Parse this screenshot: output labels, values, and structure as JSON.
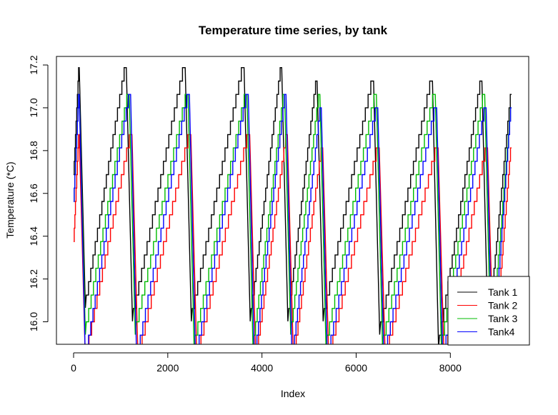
{
  "chart_data": {
    "type": "line",
    "title": "Temperature time series, by tank",
    "xlabel": "Index",
    "ylabel": "Temperature (*C)",
    "xlim": [
      0,
      9300
    ],
    "ylim": [
      15.9,
      17.2
    ],
    "x_ticks": [
      0,
      2000,
      4000,
      6000,
      8000
    ],
    "y_ticks": [
      16.0,
      16.2,
      16.4,
      16.6,
      16.8,
      17.0,
      17.2
    ],
    "x_tick_labels": [
      "0",
      "2000",
      "4000",
      "6000",
      "8000"
    ],
    "y_tick_labels": [
      "16.0",
      "16.2",
      "16.4",
      "16.6",
      "16.8",
      "17.0",
      "17.2"
    ],
    "grid": false,
    "legend_position": "bottom-right",
    "step_size": 0.0625,
    "cycle_breaks": [
      0,
      1000,
      2250,
      3500,
      4300,
      5050,
      6250,
      7500,
      8550,
      9300
    ],
    "series": [
      {
        "name": "Tank 1",
        "color": "#000000",
        "peaks": [
          17.1875,
          17.1875,
          17.1875,
          17.1875,
          17.1875,
          17.125,
          17.125,
          17.125,
          17.125,
          17.0625
        ],
        "troughs": [
          16.125,
          16.0625,
          16.0625,
          16.0625,
          16.0625,
          16.0625,
          16.0,
          15.9375,
          16.0
        ],
        "lags": [
          0,
          0,
          0,
          0,
          0,
          0,
          0,
          0,
          0,
          0
        ]
      },
      {
        "name": "Tank 2",
        "color": "#ff0000",
        "peaks": [
          16.875,
          16.875,
          16.875,
          16.875,
          16.875,
          16.8125,
          16.8125,
          16.8125,
          16.8125,
          16.8125
        ],
        "troughs": [
          15.875,
          15.875,
          15.875,
          15.875,
          15.875,
          15.875,
          15.875,
          15.875,
          15.875
        ],
        "lags": [
          0,
          120,
          120,
          120,
          120,
          120,
          120,
          120,
          120,
          120
        ]
      },
      {
        "name": "Tank 3",
        "color": "#00bb00",
        "peaks": [
          17.0625,
          17.0625,
          17.0625,
          17.0625,
          17.0625,
          17.0625,
          17.0625,
          17.0625,
          17.0625,
          17.0
        ],
        "troughs": [
          16.0,
          16.0,
          15.9375,
          15.9375,
          16.0,
          15.9375,
          15.9375,
          15.9375,
          15.9375
        ],
        "lags": [
          0,
          60,
          60,
          60,
          60,
          60,
          60,
          60,
          60,
          60
        ]
      },
      {
        "name": "Tank4",
        "color": "#0000ff",
        "peaks": [
          17.0625,
          17.0625,
          17.0625,
          17.0625,
          17.0625,
          17.0,
          17.0,
          17.0,
          17.0,
          17.0
        ],
        "troughs": [
          15.875,
          15.875,
          15.875,
          15.875,
          15.875,
          15.875,
          15.875,
          15.875,
          15.875
        ],
        "lags": [
          0,
          90,
          90,
          90,
          90,
          90,
          90,
          90,
          90,
          90
        ]
      }
    ]
  }
}
